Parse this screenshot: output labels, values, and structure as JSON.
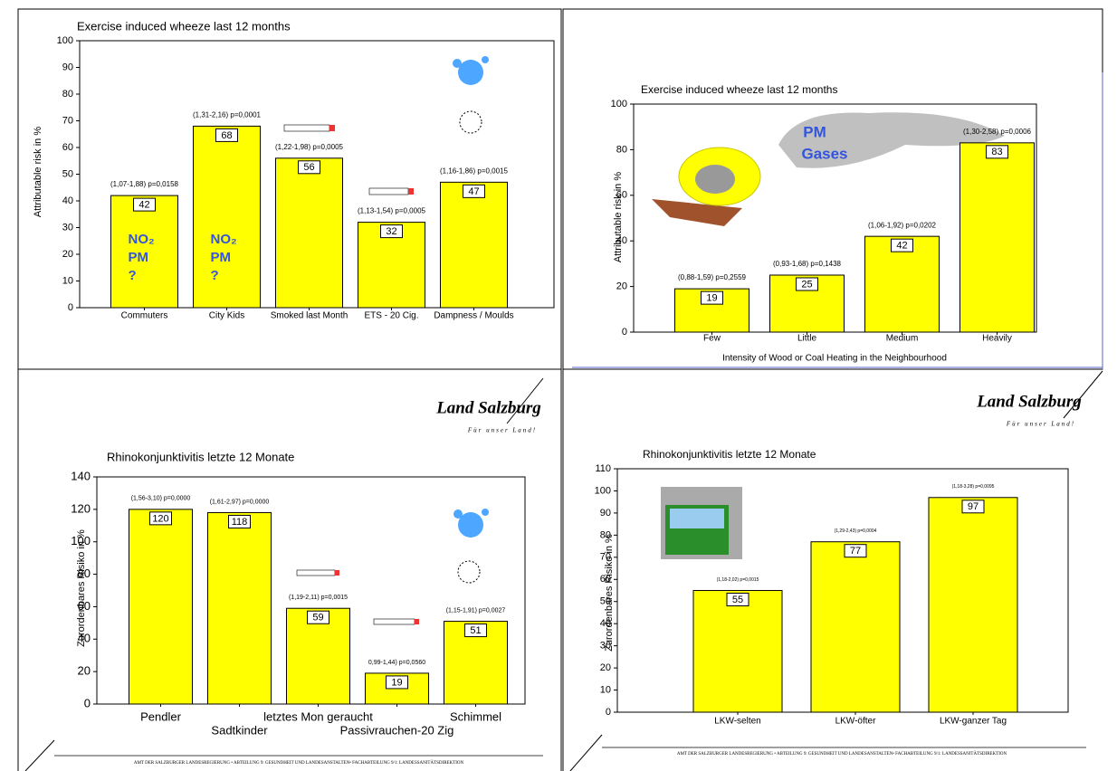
{
  "chart_data": [
    {
      "type": "bar",
      "title": "Exercise induced wheeze last 12 months",
      "y_label": "Attributable risk in %",
      "categories": [
        "Commuters",
        "City Kids",
        "Smoked last Month",
        "ETS - 20 Cig.",
        "Dampness / Moulds"
      ],
      "values": [
        42,
        68,
        56,
        32,
        47
      ],
      "color": "#ffff00",
      "annotations": [
        "(1,07-1,88) p=0,0158",
        "(1,31-2,16) p=0,0001",
        "(1,22-1,98) p=0,0005",
        "(1,13-1,54) p=0,0005",
        "(1,16-1,86) p=0,0015"
      ],
      "bar_notes": [
        [
          "NO₂",
          "PM",
          "?"
        ],
        [
          "NO₂",
          "PM",
          "?"
        ]
      ],
      "ylim": [
        0,
        100
      ],
      "yticks": [
        0,
        10,
        20,
        30,
        40,
        50,
        60,
        70,
        80,
        90,
        100
      ],
      "grid": false
    },
    {
      "type": "bar",
      "title": "Exercise induced wheeze last 12 months",
      "y_label": "Attributable risk in %",
      "x_label": "Intensity of Wood or Coal Heating in the Neighbourhood",
      "categories": [
        "Few",
        "Little",
        "Medium",
        "Heavily"
      ],
      "values": [
        19,
        25,
        42,
        83
      ],
      "color": "#ffff00",
      "annotations": [
        "(0,88-1,59) p=0,2559",
        "(0,93-1,68) p=0,1438",
        "(1,06-1,92) p=0,0202",
        "(1,30-2,58) p=0,0006"
      ],
      "cloud_labels": [
        "PM",
        "Gases"
      ],
      "ylim": [
        0,
        100
      ],
      "yticks": [
        0,
        20,
        40,
        60,
        80,
        100
      ],
      "grid": false
    },
    {
      "type": "bar",
      "title": "Rhinokonjunktivitis letzte 12 Monate",
      "y_label": "Zurordenbares Risiko in %",
      "categories": [
        "Pendler",
        "Sadtkinder",
        "letztes Mon geraucht",
        "Passivrauchen-20 Zig",
        "Schimmel"
      ],
      "values": [
        120,
        118,
        59,
        19,
        51
      ],
      "color": "#ffff00",
      "annotations": [
        "(1,56-3,10) p=0,0000",
        "(1,61-2,97) p=0,0000",
        "(1,19-2,11) p=0,0015",
        "0,99-1,44) p=0,0560",
        "(1,15-1,91) p=0,0027"
      ],
      "ylim": [
        0,
        140
      ],
      "yticks": [
        0,
        20,
        40,
        60,
        80,
        100,
        120,
        140
      ],
      "grid": false
    },
    {
      "type": "bar",
      "title": "Rhinokonjunktivitis letzte 12 Monate",
      "y_label": "Zurordenbares Risiko in %",
      "categories": [
        "LKW-selten",
        "LKW-öfter",
        "LKW-ganzer Tag"
      ],
      "values": [
        55,
        77,
        97
      ],
      "color": "#ffff00",
      "annotations": [
        "(1,18-2,02) p=0,0015",
        "(1,29-2,43) p=0,0004",
        "(1,18-3,28) p=0,0095"
      ],
      "ylim": [
        0,
        110
      ],
      "yticks": [
        0,
        10,
        20,
        30,
        40,
        50,
        60,
        70,
        80,
        90,
        100,
        110
      ],
      "grid": false
    }
  ],
  "logos": [
    {
      "name": "Land Salzburg",
      "motto": "Für unser Land!"
    },
    {
      "name": "Land Salzburg",
      "motto": "Für unser Land!"
    }
  ],
  "footers": [
    "AMT DER SALZBURGER LANDESREGIERUNG • ABTEILUNG 9: GESUNDHEIT UND LANDESANSTALTEN• FACHABTEILUNG 9/1: LANDESSANITÄTSDIREKTION",
    "AMT DER SALZBURGER LANDESREGIERUNG • ABTEILUNG 9: GESUNDHEIT UND LANDESANSTALTEN• FACHABTEILUNG 9/1: LANDESSANITÄTSDIREKTION"
  ]
}
